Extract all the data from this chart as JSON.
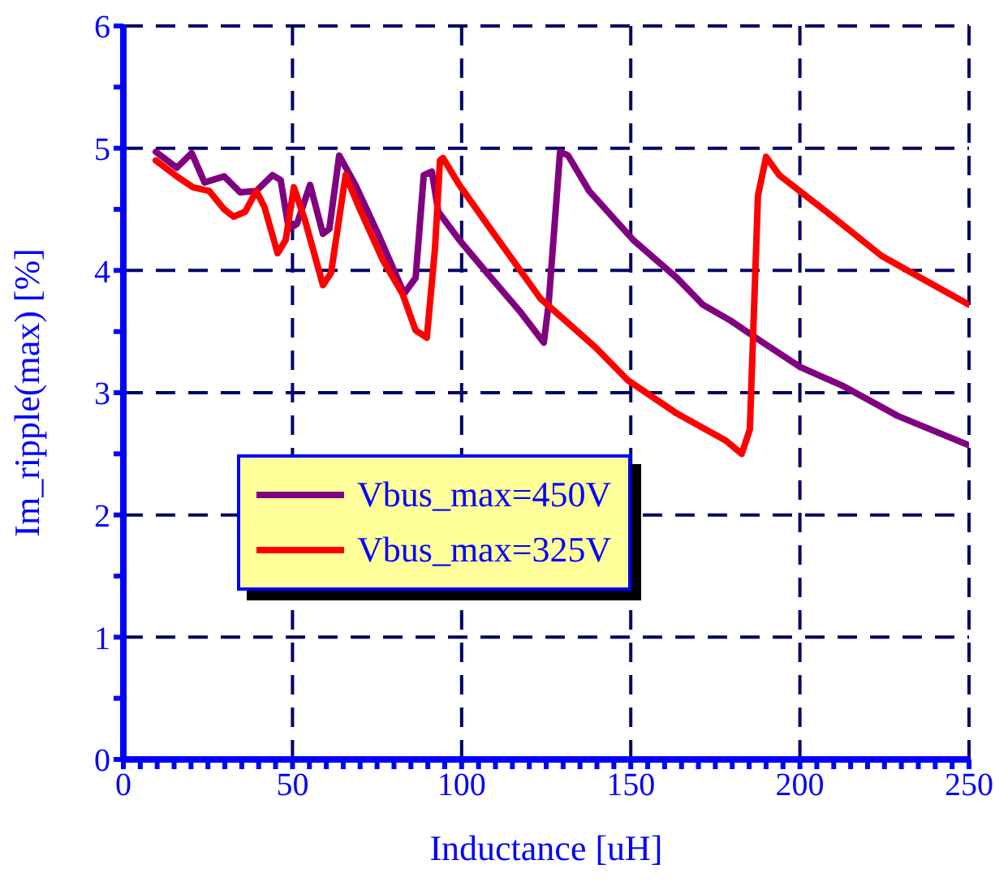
{
  "chart_data": {
    "type": "line",
    "xlabel": "Inductance [uH]",
    "ylabel": "Im_ripple(max) [%]",
    "xlim": [
      0,
      250
    ],
    "xticks": [
      0,
      {
        "value": 5,
        "label": null
      },
      {
        "value": 10,
        "label": null
      },
      {
        "value": 15,
        "label": null
      },
      {
        "value": 20,
        "label": null
      },
      {
        "value": 25,
        "label": null
      },
      {
        "value": 30,
        "label": null
      },
      {
        "value": 35,
        "label": null
      },
      {
        "value": 40,
        "label": null
      },
      {
        "value": 45,
        "label": null
      },
      50,
      {
        "value": 55,
        "label": null
      },
      {
        "value": 60,
        "label": null
      },
      {
        "value": 65,
        "label": null
      },
      {
        "value": 70,
        "label": null
      },
      {
        "value": 75,
        "label": null
      },
      {
        "value": 80,
        "label": null
      },
      {
        "value": 85,
        "label": null
      },
      {
        "value": 90,
        "label": null
      },
      {
        "value": 95,
        "label": null
      },
      100,
      {
        "value": 105,
        "label": null
      },
      {
        "value": 110,
        "label": null
      },
      {
        "value": 115,
        "label": null
      },
      {
        "value": 120,
        "label": null
      },
      {
        "value": 125,
        "label": null
      },
      {
        "value": 130,
        "label": null
      },
      {
        "value": 135,
        "label": null
      },
      {
        "value": 140,
        "label": null
      },
      {
        "value": 145,
        "label": null
      },
      150,
      {
        "value": 155,
        "label": null
      },
      {
        "value": 160,
        "label": null
      },
      {
        "value": 165,
        "label": null
      },
      {
        "value": 170,
        "label": null
      },
      {
        "value": 175,
        "label": null
      },
      {
        "value": 180,
        "label": null
      },
      {
        "value": 185,
        "label": null
      },
      {
        "value": 190,
        "label": null
      },
      {
        "value": 195,
        "label": null
      },
      200,
      {
        "value": 205,
        "label": null
      },
      {
        "value": 210,
        "label": null
      },
      {
        "value": 215,
        "label": null
      },
      {
        "value": 220,
        "label": null
      },
      {
        "value": 225,
        "label": null
      },
      {
        "value": 230,
        "label": null
      },
      {
        "value": 235,
        "label": null
      },
      {
        "value": 240,
        "label": null
      },
      {
        "value": 245,
        "label": null
      },
      250
    ],
    "ylim": [
      0,
      6
    ],
    "yticks": [
      0,
      {
        "value": 0.5,
        "label": null
      },
      1,
      {
        "value": 1.5,
        "label": null
      },
      2,
      {
        "value": 2.5,
        "label": null
      },
      3,
      {
        "value": 3.5,
        "label": null
      },
      4,
      {
        "value": 4.5,
        "label": null
      },
      5,
      {
        "value": 5.5,
        "label": null
      },
      6
    ],
    "grid": true,
    "legend": "left",
    "marker": "none",
    "line_style": "solid",
    "series": [
      {
        "name": "Vbus_max=450V",
        "color": "#800080",
        "x": [
          9.6,
          15.8,
          20.2,
          24.0,
          29.8,
          34.5,
          39.3,
          44.1,
          46.5,
          48.9,
          51.3,
          55.2,
          59.0,
          60.9,
          63.8,
          68.6,
          75.3,
          83.0,
          86.4,
          88.8,
          91.2,
          93.1,
          99.3,
          107.5,
          117.1,
          124.3,
          125.7,
          129.1,
          131.5,
          137.7,
          150.7,
          163.6,
          171.3,
          179.5,
          189.1,
          200.1,
          213.1,
          228.9,
          250
        ],
        "values": [
          4.97,
          4.84,
          4.96,
          4.72,
          4.77,
          4.64,
          4.65,
          4.78,
          4.74,
          4.34,
          4.38,
          4.7,
          4.3,
          4.34,
          4.94,
          4.7,
          4.3,
          3.81,
          3.94,
          4.78,
          4.81,
          4.48,
          4.25,
          3.98,
          3.67,
          3.41,
          3.72,
          4.97,
          4.94,
          4.65,
          4.25,
          3.94,
          3.72,
          3.59,
          3.41,
          3.21,
          3.05,
          2.81,
          2.57
        ]
      },
      {
        "name": "Vbus_max=325V",
        "color": "#ff0000",
        "x": [
          9.6,
          15.8,
          20.6,
          25.4,
          29.8,
          32.6,
          36.0,
          39.3,
          41.7,
          45.6,
          48.0,
          50.4,
          53.7,
          59.0,
          61.4,
          65.7,
          69.6,
          76.8,
          82.5,
          86.4,
          89.7,
          92.1,
          93.6,
          94.5,
          99.3,
          107.5,
          123.3,
          139.6,
          149.2,
          163.6,
          178.0,
          182.8,
          185.2,
          187.6,
          190.0,
          193.9,
          209.7,
          224.1,
          233.7,
          250
        ],
        "values": [
          4.9,
          4.77,
          4.68,
          4.65,
          4.5,
          4.44,
          4.48,
          4.65,
          4.52,
          4.14,
          4.25,
          4.68,
          4.41,
          3.88,
          3.98,
          4.78,
          4.52,
          4.08,
          3.81,
          3.51,
          3.45,
          4.17,
          4.9,
          4.92,
          4.7,
          4.38,
          3.77,
          3.37,
          3.1,
          2.83,
          2.61,
          2.5,
          2.7,
          4.61,
          4.93,
          4.78,
          4.44,
          4.12,
          3.97,
          3.72
        ]
      }
    ]
  }
}
